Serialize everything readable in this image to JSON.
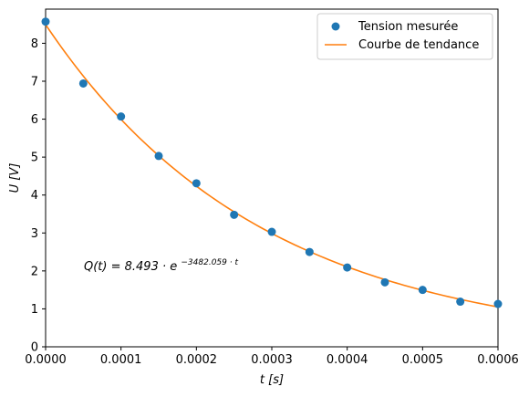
{
  "chart_data": {
    "type": "scatter",
    "xlabel": "t [s]",
    "ylabel": "U [V]",
    "xlim": [
      0,
      0.0006
    ],
    "ylim": [
      0,
      8.9
    ],
    "x_ticks": [
      "0.0000",
      "0.0001",
      "0.0002",
      "0.0003",
      "0.0004",
      "0.0005",
      "0.0006"
    ],
    "y_ticks": [
      "0",
      "1",
      "2",
      "3",
      "4",
      "5",
      "6",
      "7",
      "8"
    ],
    "grid": false,
    "legend_position": "top-right",
    "series": [
      {
        "name": "Tension mesurée",
        "kind": "scatter",
        "color": "#1f77b4",
        "x": [
          0,
          5e-05,
          0.0001,
          0.00015,
          0.0002,
          0.00025,
          0.0003,
          0.00035,
          0.0004,
          0.00045,
          0.0005,
          0.00055,
          0.0006
        ],
        "y": [
          8.57,
          6.94,
          6.07,
          5.03,
          4.31,
          3.48,
          3.03,
          2.5,
          2.09,
          1.7,
          1.5,
          1.19,
          1.13
        ]
      },
      {
        "name": "Courbe de tendance",
        "kind": "line",
        "color": "#ff7f0e",
        "model": {
          "amplitude": 8.493,
          "rate": -3482.059
        }
      }
    ],
    "annotation": {
      "text_main": "Q(t) = 8.493 · e",
      "text_exponent": "−3482.059 · t",
      "x": 5e-05,
      "y": 2.1
    }
  }
}
